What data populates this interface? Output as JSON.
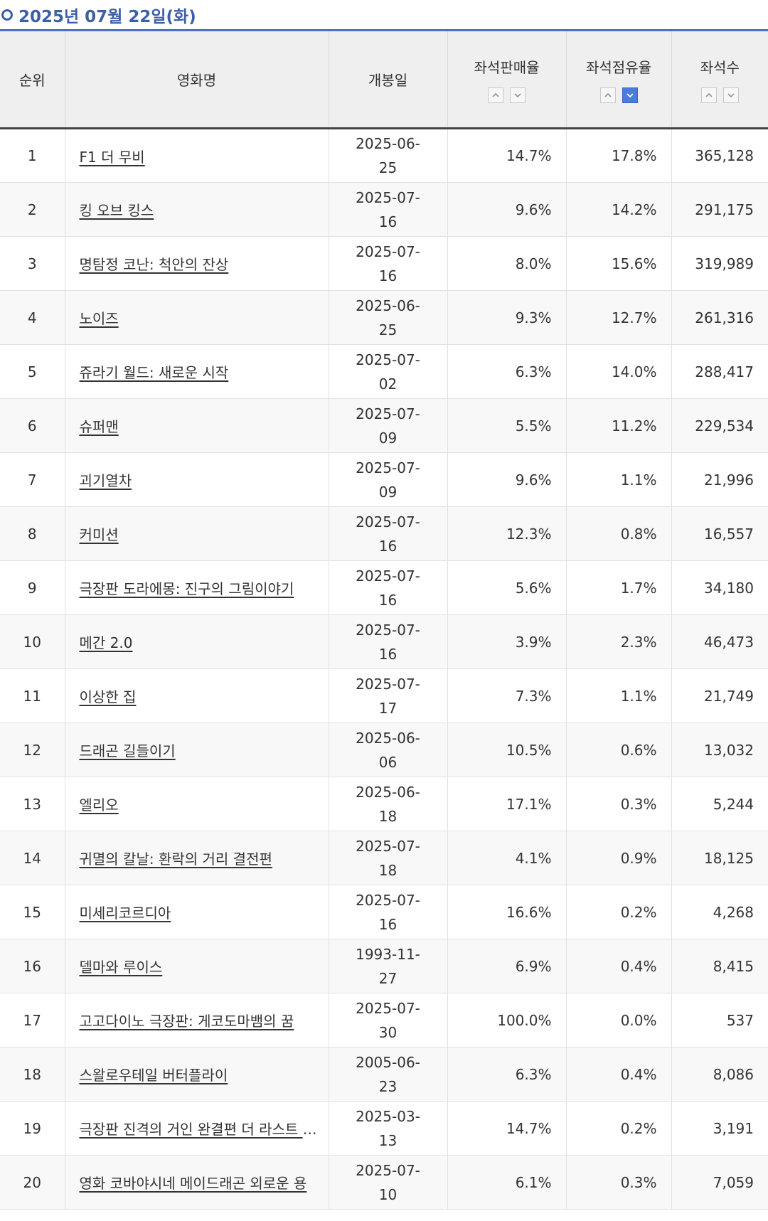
{
  "date_label": "2025년 07월 22일(화)",
  "columns": {
    "rank": "순위",
    "title": "영화명",
    "release": "개봉일",
    "sales_rate": "좌석판매율",
    "share": "좌석점유율",
    "seats": "좌석수"
  },
  "sort": {
    "up_icon": "chevron-up-icon",
    "down_icon": "chevron-down-icon",
    "active_color": "#4b7be0",
    "active": "share-desc"
  },
  "rows": [
    {
      "rank": "1",
      "title": "F1 더 무비",
      "release": "2025-06-25",
      "sales_rate": "14.7%",
      "share": "17.8%",
      "seats": "365,128"
    },
    {
      "rank": "2",
      "title": "킹 오브 킹스",
      "release": "2025-07-16",
      "sales_rate": "9.6%",
      "share": "14.2%",
      "seats": "291,175"
    },
    {
      "rank": "3",
      "title": "명탐정 코난: 척안의 잔상",
      "release": "2025-07-16",
      "sales_rate": "8.0%",
      "share": "15.6%",
      "seats": "319,989"
    },
    {
      "rank": "4",
      "title": "노이즈",
      "release": "2025-06-25",
      "sales_rate": "9.3%",
      "share": "12.7%",
      "seats": "261,316"
    },
    {
      "rank": "5",
      "title": "쥬라기 월드: 새로운 시작",
      "release": "2025-07-02",
      "sales_rate": "6.3%",
      "share": "14.0%",
      "seats": "288,417"
    },
    {
      "rank": "6",
      "title": "슈퍼맨",
      "release": "2025-07-09",
      "sales_rate": "5.5%",
      "share": "11.2%",
      "seats": "229,534"
    },
    {
      "rank": "7",
      "title": "괴기열차",
      "release": "2025-07-09",
      "sales_rate": "9.6%",
      "share": "1.1%",
      "seats": "21,996"
    },
    {
      "rank": "8",
      "title": "커미션",
      "release": "2025-07-16",
      "sales_rate": "12.3%",
      "share": "0.8%",
      "seats": "16,557"
    },
    {
      "rank": "9",
      "title": "극장판 도라에몽: 진구의 그림이야기",
      "release": "2025-07-16",
      "sales_rate": "5.6%",
      "share": "1.7%",
      "seats": "34,180"
    },
    {
      "rank": "10",
      "title": "메간 2.0",
      "release": "2025-07-16",
      "sales_rate": "3.9%",
      "share": "2.3%",
      "seats": "46,473"
    },
    {
      "rank": "11",
      "title": "이상한 집",
      "release": "2025-07-17",
      "sales_rate": "7.3%",
      "share": "1.1%",
      "seats": "21,749"
    },
    {
      "rank": "12",
      "title": "드래곤 길들이기",
      "release": "2025-06-06",
      "sales_rate": "10.5%",
      "share": "0.6%",
      "seats": "13,032"
    },
    {
      "rank": "13",
      "title": "엘리오",
      "release": "2025-06-18",
      "sales_rate": "17.1%",
      "share": "0.3%",
      "seats": "5,244"
    },
    {
      "rank": "14",
      "title": "귀멸의 칼날: 환락의 거리 결전편",
      "release": "2025-07-18",
      "sales_rate": "4.1%",
      "share": "0.9%",
      "seats": "18,125"
    },
    {
      "rank": "15",
      "title": "미세리코르디아",
      "release": "2025-07-16",
      "sales_rate": "16.6%",
      "share": "0.2%",
      "seats": "4,268"
    },
    {
      "rank": "16",
      "title": "델마와 루이스",
      "release": "1993-11-27",
      "sales_rate": "6.9%",
      "share": "0.4%",
      "seats": "8,415"
    },
    {
      "rank": "17",
      "title": "고고다이노 극장판: 게코도마뱀의 꿈",
      "release": "2025-07-30",
      "sales_rate": "100.0%",
      "share": "0.0%",
      "seats": "537"
    },
    {
      "rank": "18",
      "title": "스왈로우테일 버터플라이",
      "release": "2005-06-23",
      "sales_rate": "6.3%",
      "share": "0.4%",
      "seats": "8,086"
    },
    {
      "rank": "19",
      "title": "극장판 진격의 거인 완결편 더 라스트 어택",
      "release": "2025-03-13",
      "sales_rate": "14.7%",
      "share": "0.2%",
      "seats": "3,191"
    },
    {
      "rank": "20",
      "title": "영화 코바야시네 메이드래곤 외로운 용",
      "release": "2025-07-10",
      "sales_rate": "6.1%",
      "share": "0.3%",
      "seats": "7,059"
    }
  ]
}
